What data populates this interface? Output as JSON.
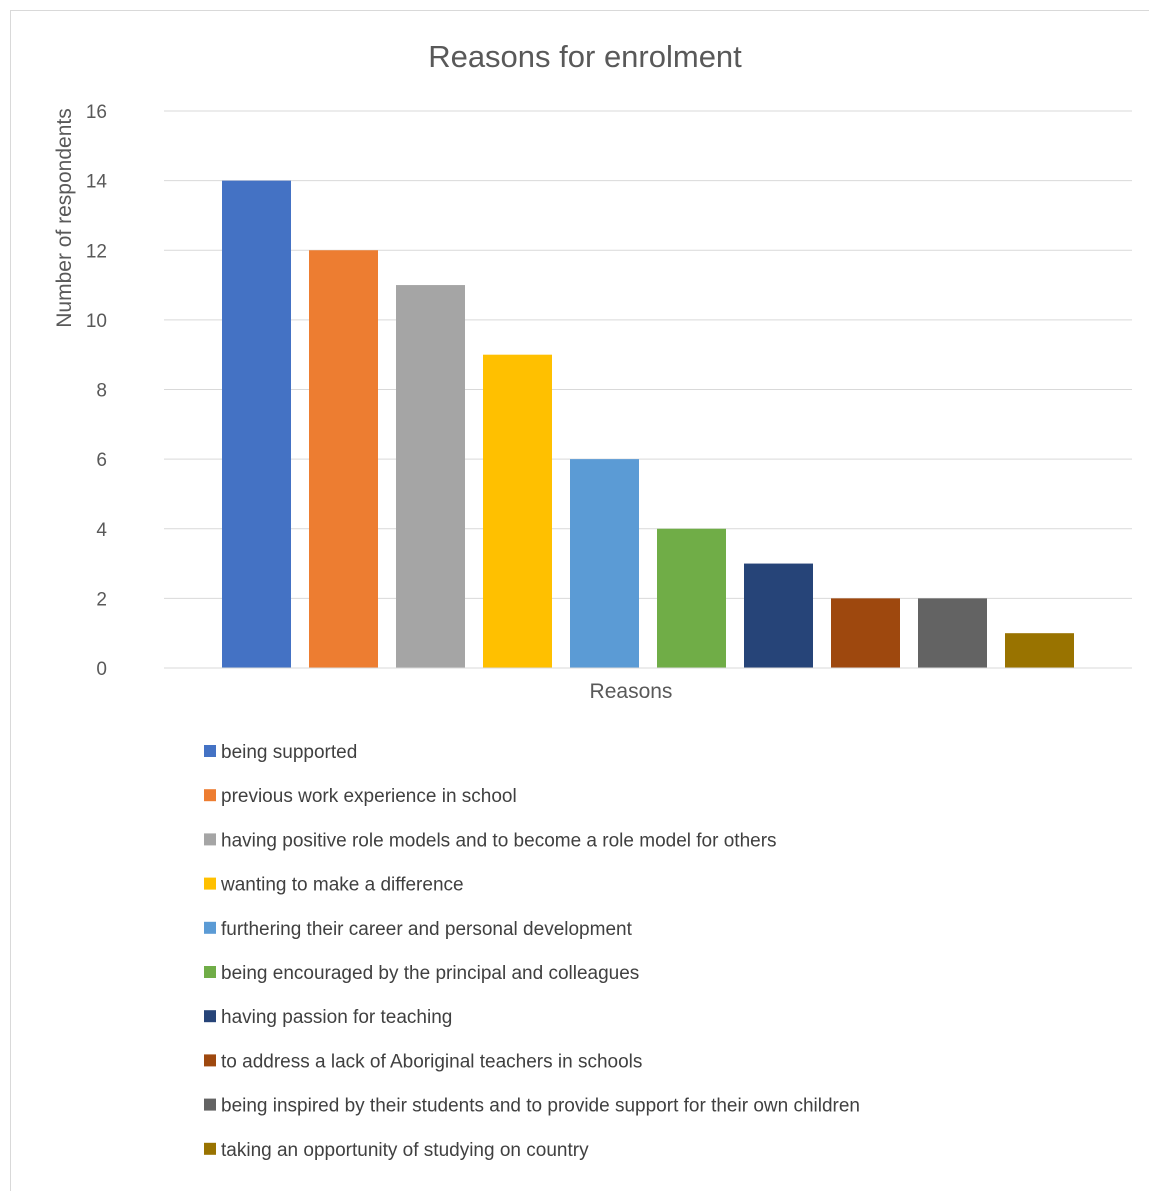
{
  "chart_data": {
    "type": "bar",
    "title": "Reasons for enrolment",
    "xlabel": "Reasons",
    "ylabel": "Number of respondents",
    "ylim": [
      0,
      16
    ],
    "ytick_step": 2,
    "yticks": [
      "0",
      "2",
      "4",
      "6",
      "8",
      "10",
      "12",
      "14",
      "16"
    ],
    "grid": true,
    "legend_position": "bottom",
    "series": [
      {
        "name": "being supported",
        "value": 14,
        "color": "#4472C4"
      },
      {
        "name": "previous work experience in school",
        "value": 12,
        "color": "#ED7D31"
      },
      {
        "name": "having positive role models and to become a role model for others",
        "value": 11,
        "color": "#A5A5A5"
      },
      {
        "name": "wanting to make a difference",
        "value": 9,
        "color": "#FFC000"
      },
      {
        "name": "furthering their career and personal development",
        "value": 6,
        "color": "#5B9BD5"
      },
      {
        "name": "being encouraged by the principal and colleagues",
        "value": 4,
        "color": "#70AD47"
      },
      {
        "name": "having passion for teaching",
        "value": 3,
        "color": "#264478"
      },
      {
        "name": "to address a lack of Aboriginal teachers in schools",
        "value": 2,
        "color": "#9E480E"
      },
      {
        "name": "being inspired by their students and to provide support for their own children",
        "value": 2,
        "color": "#636363"
      },
      {
        "name": "taking an opportunity of studying on country",
        "value": 1,
        "color": "#997300"
      }
    ]
  }
}
